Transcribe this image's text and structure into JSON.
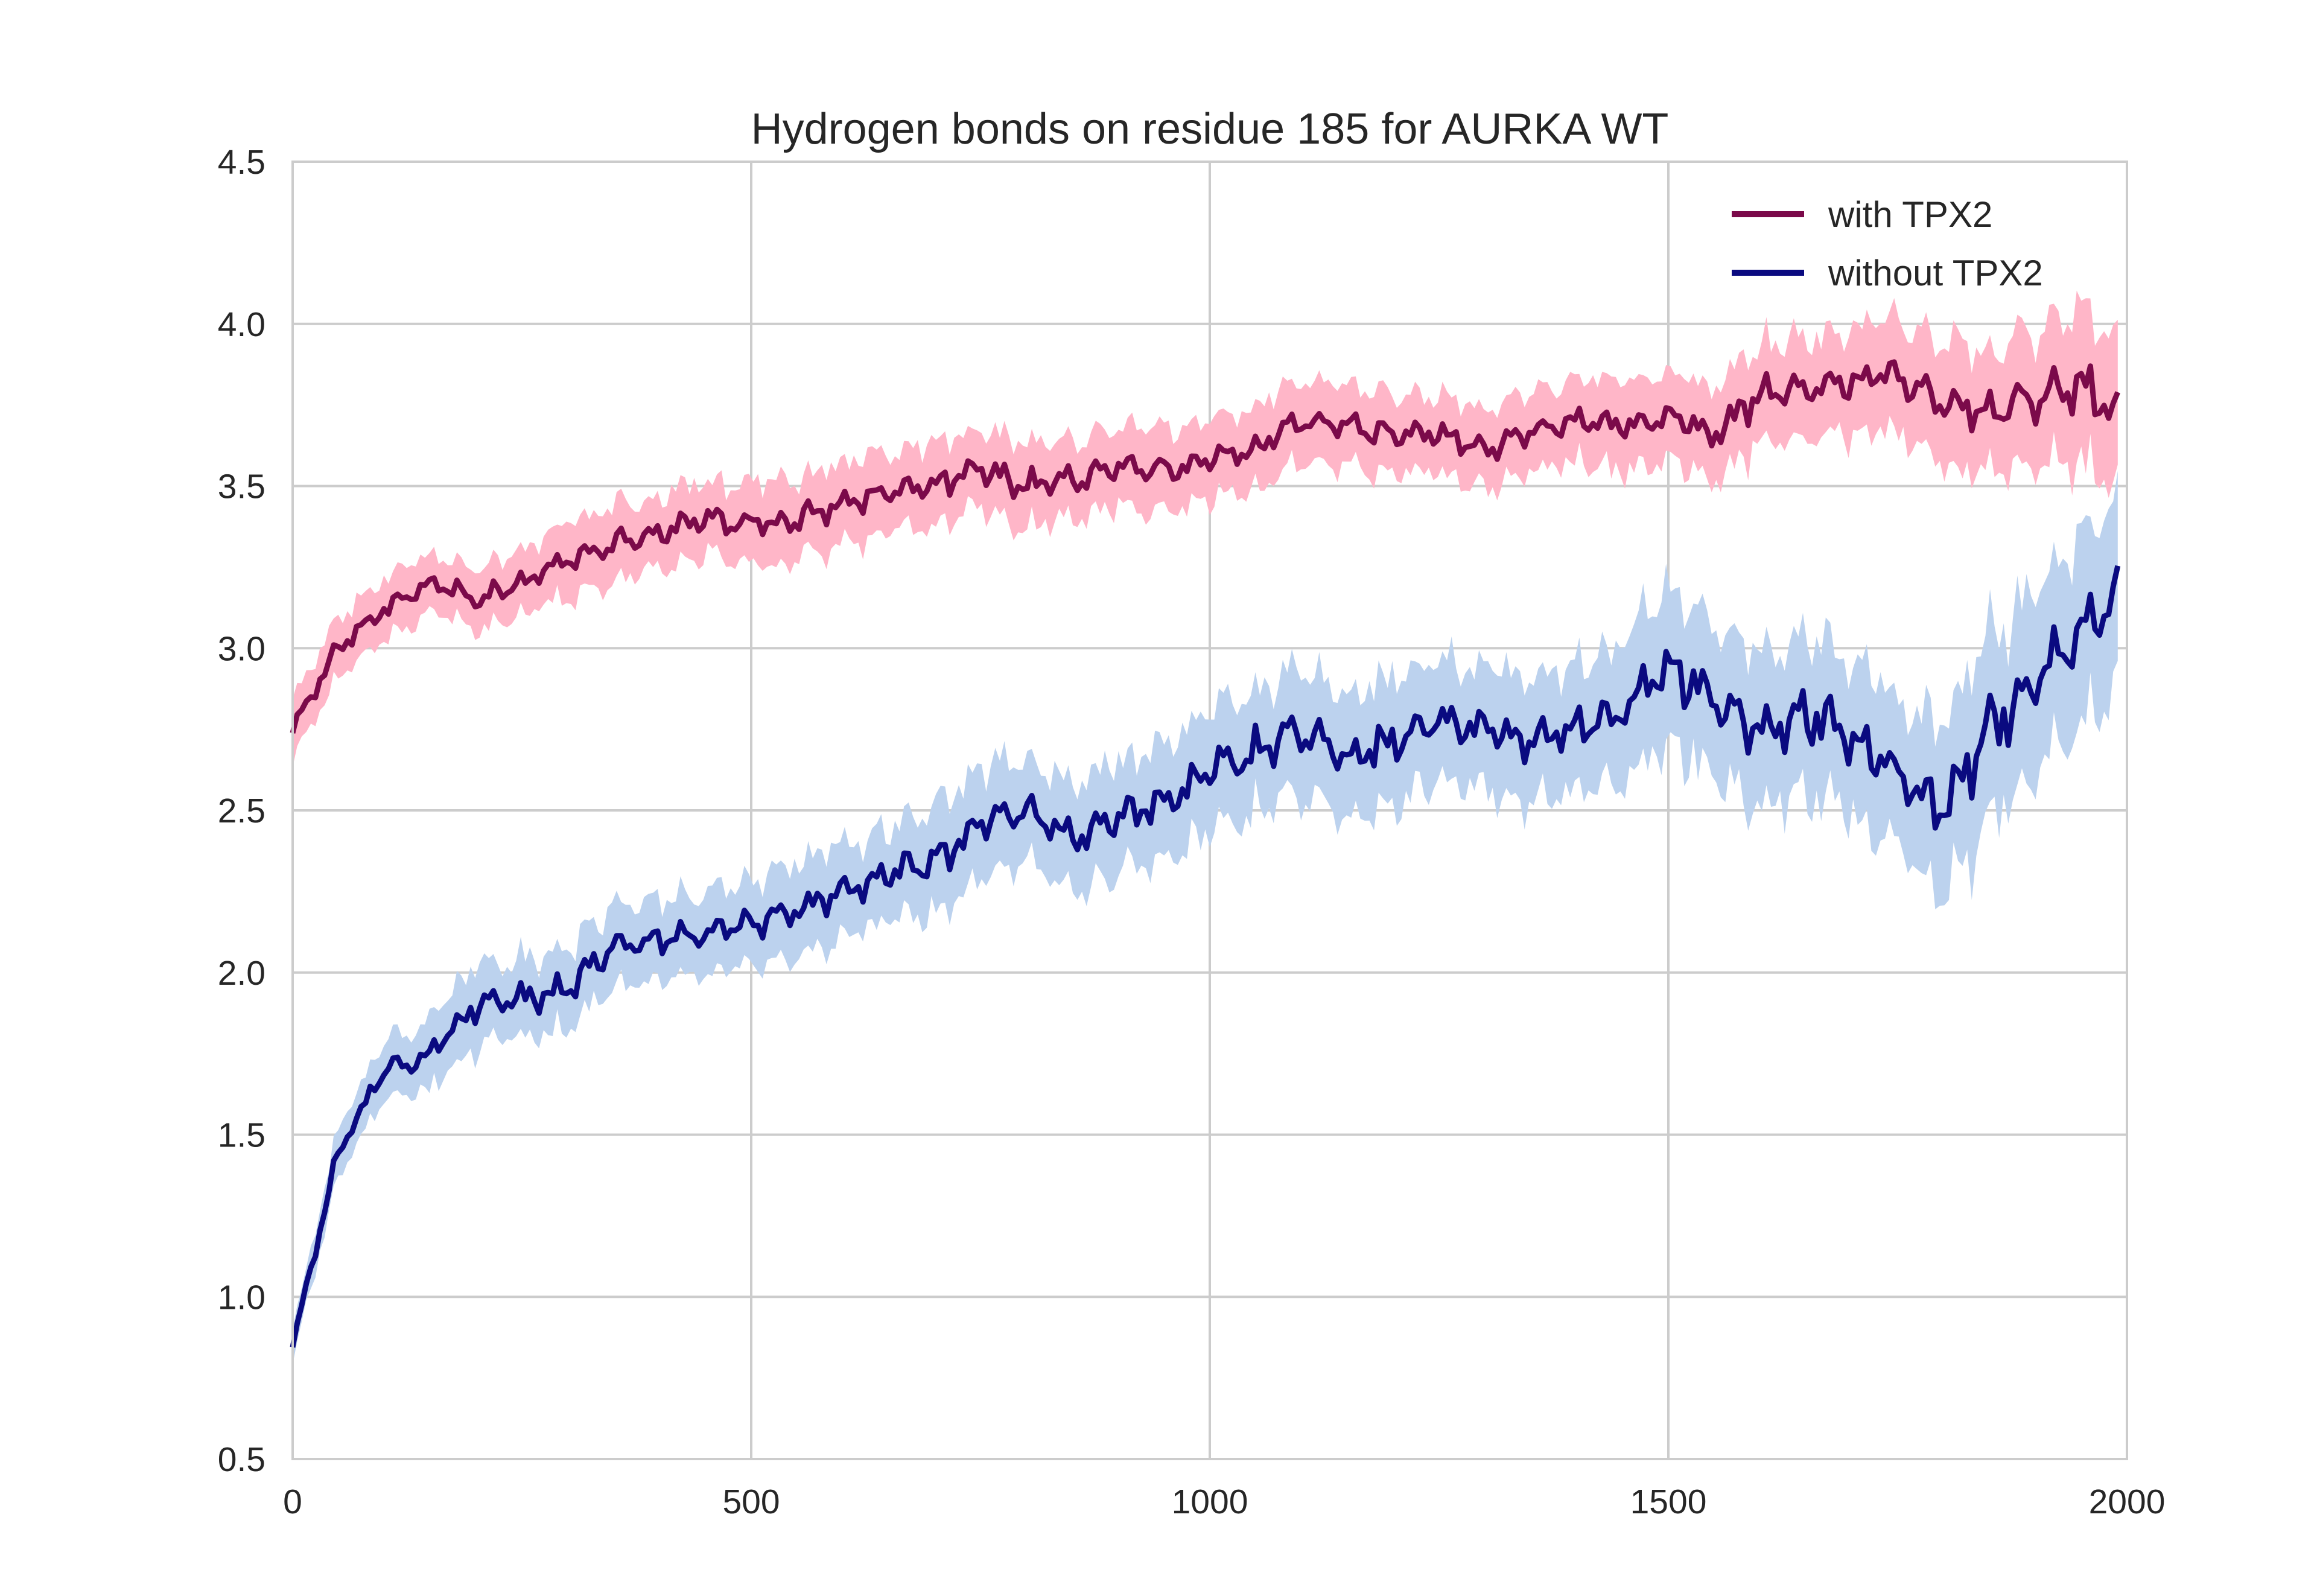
{
  "chart_data": {
    "type": "line",
    "title": "Hydrogen bonds on residue 185 for AURKA WT",
    "xlabel": "",
    "ylabel": "",
    "xlim": [
      0,
      2000
    ],
    "ylim": [
      0.5,
      4.5
    ],
    "x_ticks": [
      "0",
      "500",
      "1000",
      "1500",
      "2000"
    ],
    "y_ticks": [
      "0.5",
      "1.0",
      "1.5",
      "2.0",
      "2.5",
      "3.0",
      "3.5",
      "4.0",
      "4.5"
    ],
    "grid": true,
    "legend_position": "top-right",
    "x": [
      0,
      50,
      100,
      150,
      200,
      250,
      300,
      350,
      400,
      450,
      500,
      550,
      600,
      650,
      700,
      750,
      800,
      850,
      900,
      950,
      1000,
      1050,
      1100,
      1150,
      1200,
      1250,
      1300,
      1350,
      1400,
      1450,
      1500,
      1550,
      1600,
      1650,
      1700,
      1750,
      1800,
      1850,
      1900,
      1950,
      1990
    ],
    "series": [
      {
        "name": "with TPX2",
        "color": "#7b0a4a",
        "band_color": "#ffb6c8",
        "values": [
          2.75,
          3.0,
          3.12,
          3.2,
          3.15,
          3.2,
          3.28,
          3.32,
          3.35,
          3.4,
          3.38,
          3.4,
          3.45,
          3.48,
          3.5,
          3.55,
          3.5,
          3.52,
          3.55,
          3.55,
          3.58,
          3.62,
          3.7,
          3.68,
          3.66,
          3.66,
          3.62,
          3.66,
          3.7,
          3.68,
          3.72,
          3.66,
          3.78,
          3.8,
          3.82,
          3.85,
          3.75,
          3.72,
          3.78,
          3.82,
          3.72
        ],
        "band": [
          0.1,
          0.1,
          0.1,
          0.1,
          0.1,
          0.1,
          0.12,
          0.12,
          0.12,
          0.12,
          0.13,
          0.13,
          0.13,
          0.13,
          0.13,
          0.13,
          0.13,
          0.13,
          0.13,
          0.13,
          0.13,
          0.13,
          0.13,
          0.13,
          0.13,
          0.13,
          0.13,
          0.13,
          0.13,
          0.15,
          0.15,
          0.15,
          0.16,
          0.16,
          0.17,
          0.18,
          0.2,
          0.2,
          0.22,
          0.25,
          0.25
        ]
      },
      {
        "name": "without TPX2",
        "color": "#0a0a80",
        "band_color": "#bcd2ee",
        "values": [
          0.85,
          1.45,
          1.7,
          1.75,
          1.9,
          1.92,
          1.95,
          2.08,
          2.1,
          2.12,
          2.15,
          2.2,
          2.25,
          2.3,
          2.35,
          2.45,
          2.5,
          2.42,
          2.48,
          2.52,
          2.62,
          2.68,
          2.75,
          2.65,
          2.72,
          2.78,
          2.75,
          2.72,
          2.75,
          2.8,
          2.95,
          2.85,
          2.75,
          2.8,
          2.72,
          2.62,
          2.5,
          2.75,
          2.9,
          3.05,
          3.15
        ],
        "band": [
          0.05,
          0.08,
          0.1,
          0.12,
          0.13,
          0.13,
          0.13,
          0.13,
          0.13,
          0.13,
          0.14,
          0.15,
          0.15,
          0.15,
          0.17,
          0.18,
          0.18,
          0.18,
          0.18,
          0.18,
          0.2,
          0.2,
          0.2,
          0.2,
          0.2,
          0.2,
          0.2,
          0.2,
          0.2,
          0.22,
          0.25,
          0.25,
          0.25,
          0.25,
          0.25,
          0.25,
          0.28,
          0.3,
          0.3,
          0.3,
          0.3
        ]
      }
    ]
  }
}
